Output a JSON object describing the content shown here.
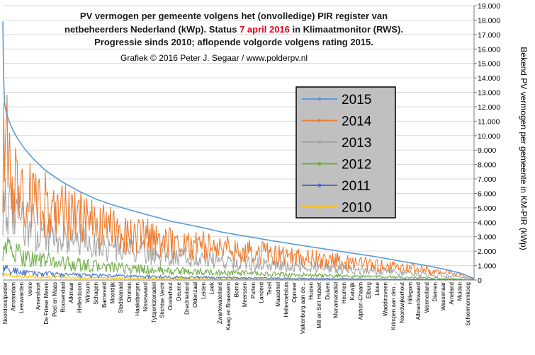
{
  "chart_data": {
    "type": "line",
    "title_lines": [
      [
        {
          "text": "PV vermogen per gemeente volgens het (onvolledige) PIR register van",
          "color": "#1a1a1a"
        }
      ],
      [
        {
          "text": "netbeheerders Nederland (kWp). Status ",
          "color": "#1a1a1a"
        },
        {
          "text": "7 april 2016",
          "color": "#e3001b"
        },
        {
          "text": " in Klimaatmonitor (RWS).",
          "color": "#1a1a1a"
        }
      ],
      [
        {
          "text": "Progressie sinds 2010; aflopende volgorde volgens rating 2015.",
          "color": "#1a1a1a"
        }
      ]
    ],
    "subtitle": "Grafiek  © 2016 Peter J. Segaar / www.polderpv.nl",
    "ylabel": "Bekend PV vermogen per gemeente in KM-PIR (kWp)",
    "ylim": [
      0,
      19000
    ],
    "y_ticks": [
      "0",
      "1.000",
      "2.000",
      "3.000",
      "4.000",
      "5.000",
      "6.000",
      "7.000",
      "8.000",
      "9.000",
      "10.000",
      "11.000",
      "12.000",
      "13.000",
      "14.000",
      "15.000",
      "16.000",
      "17.000",
      "18.000",
      "19.000"
    ],
    "grid": true,
    "legend_position": "center-right",
    "x_tick_labels": [
      "Noordoostpolder",
      "Amsterdam",
      "Leeuwarden",
      "Venlo",
      "Amersfoort",
      "De Friese Meren",
      "Peel en Maas",
      "Roosendaal",
      "Alkmaar",
      "Hellendoorn",
      "Winsum",
      "Schagen",
      "Barneveld",
      "Moerdijk",
      "Stadskanaal",
      "Ommen",
      "Haaksbergen",
      "Nissewaard",
      "Tytsjerksteradiel",
      "Stichtse Vecht",
      "Oosterhout",
      "Deurne",
      "Drechterland",
      "Oldenzaal",
      "Leiden",
      "Leek",
      "Zwartewaterland",
      "Kaag en Braassem",
      "Borne",
      "Meerssen",
      "Putten",
      "Landerd",
      "Texel",
      "Maasdriel",
      "Hellevoetsluis",
      "Opmeer",
      "Valkenburg aan de...",
      "Huizen",
      "Mill en Sint Hubert",
      "Duiven",
      "Menameradiel",
      "Heumen",
      "Katwijk",
      "Alphen-Chaam",
      "Elburg",
      "Lisse",
      "Waddinxveen",
      "Krimpen aan den...",
      "Noordwijkerhout",
      "Hillegom",
      "Albrandswaard",
      "Wormerland",
      "Diemen",
      "Wassenaar",
      "Ameland",
      "Muiden",
      "Schiermonnikoog"
    ],
    "series": [
      {
        "name": "2015",
        "color": "#5b9bd5",
        "anchors": [
          [
            0,
            17900
          ],
          [
            1,
            13800
          ],
          [
            2,
            12300
          ],
          [
            3,
            11900
          ],
          [
            5,
            11400
          ],
          [
            8,
            10900
          ],
          [
            12,
            10350
          ],
          [
            18,
            9750
          ],
          [
            25,
            9150
          ],
          [
            35,
            8450
          ],
          [
            50,
            7600
          ],
          [
            70,
            6800
          ],
          [
            90,
            6150
          ],
          [
            110,
            5600
          ],
          [
            130,
            5200
          ],
          [
            150,
            4850
          ],
          [
            175,
            4450
          ],
          [
            200,
            4050
          ],
          [
            230,
            3700
          ],
          [
            260,
            3300
          ],
          [
            290,
            3000
          ],
          [
            320,
            2700
          ],
          [
            350,
            2420
          ],
          [
            380,
            2150
          ],
          [
            410,
            1880
          ],
          [
            440,
            1620
          ],
          [
            470,
            1300
          ],
          [
            500,
            1000
          ],
          [
            520,
            760
          ],
          [
            540,
            480
          ],
          [
            556,
            100
          ]
        ]
      },
      {
        "name": "2014",
        "color": "#ed7d31",
        "anchors": [
          [
            0,
            8300
          ],
          [
            1,
            10500
          ],
          [
            3,
            7500
          ],
          [
            5,
            9000
          ],
          [
            8,
            7800
          ],
          [
            12,
            6500
          ],
          [
            18,
            6600
          ],
          [
            25,
            5800
          ],
          [
            35,
            5600
          ],
          [
            50,
            5200
          ],
          [
            70,
            4700
          ],
          [
            90,
            4300
          ],
          [
            110,
            3700
          ],
          [
            130,
            3500
          ],
          [
            150,
            3200
          ],
          [
            175,
            2900
          ],
          [
            200,
            2600
          ],
          [
            230,
            2400
          ],
          [
            260,
            2200
          ],
          [
            290,
            2000
          ],
          [
            320,
            1750
          ],
          [
            350,
            1550
          ],
          [
            380,
            1400
          ],
          [
            410,
            1200
          ],
          [
            440,
            1050
          ],
          [
            470,
            900
          ],
          [
            500,
            700
          ],
          [
            520,
            550
          ],
          [
            540,
            380
          ],
          [
            556,
            60
          ]
        ]
      },
      {
        "name": "2013",
        "color": "#a5a5a5",
        "anchors": [
          [
            0,
            5600
          ],
          [
            1,
            6400
          ],
          [
            3,
            5800
          ],
          [
            6,
            5200
          ],
          [
            10,
            4600
          ],
          [
            15,
            4300
          ],
          [
            25,
            3900
          ],
          [
            35,
            3700
          ],
          [
            50,
            3300
          ],
          [
            70,
            3000
          ],
          [
            90,
            2700
          ],
          [
            110,
            2400
          ],
          [
            130,
            2200
          ],
          [
            150,
            2050
          ],
          [
            175,
            1850
          ],
          [
            200,
            1700
          ],
          [
            230,
            1500
          ],
          [
            260,
            1350
          ],
          [
            290,
            1200
          ],
          [
            320,
            1050
          ],
          [
            350,
            900
          ],
          [
            380,
            800
          ],
          [
            410,
            700
          ],
          [
            440,
            600
          ],
          [
            470,
            500
          ],
          [
            500,
            400
          ],
          [
            520,
            300
          ],
          [
            540,
            200
          ],
          [
            556,
            30
          ]
        ]
      },
      {
        "name": "2012",
        "color": "#70ad47",
        "anchors": [
          [
            0,
            2400
          ],
          [
            1,
            3100
          ],
          [
            3,
            2300
          ],
          [
            6,
            2200
          ],
          [
            12,
            1900
          ],
          [
            20,
            1700
          ],
          [
            35,
            1500
          ],
          [
            50,
            1350
          ],
          [
            70,
            1200
          ],
          [
            90,
            1050
          ],
          [
            110,
            950
          ],
          [
            130,
            850
          ],
          [
            150,
            780
          ],
          [
            175,
            700
          ],
          [
            200,
            620
          ],
          [
            230,
            560
          ],
          [
            260,
            500
          ],
          [
            290,
            450
          ],
          [
            320,
            400
          ],
          [
            350,
            350
          ],
          [
            380,
            300
          ],
          [
            410,
            270
          ],
          [
            440,
            230
          ],
          [
            470,
            190
          ],
          [
            500,
            150
          ],
          [
            530,
            100
          ],
          [
            556,
            10
          ]
        ]
      },
      {
        "name": "2011",
        "color": "#4472c4",
        "anchors": [
          [
            0,
            600
          ],
          [
            3,
            900
          ],
          [
            8,
            500
          ],
          [
            15,
            700
          ],
          [
            25,
            500
          ],
          [
            40,
            450
          ],
          [
            60,
            400
          ],
          [
            80,
            350
          ],
          [
            100,
            320
          ],
          [
            130,
            280
          ],
          [
            160,
            250
          ],
          [
            190,
            220
          ],
          [
            220,
            190
          ],
          [
            250,
            170
          ],
          [
            280,
            150
          ],
          [
            310,
            130
          ],
          [
            340,
            115
          ],
          [
            370,
            100
          ],
          [
            400,
            85
          ],
          [
            430,
            70
          ],
          [
            460,
            60
          ],
          [
            490,
            45
          ],
          [
            520,
            30
          ],
          [
            556,
            5
          ]
        ]
      },
      {
        "name": "2010",
        "color": "#ffc000",
        "anchors": [
          [
            0,
            300
          ],
          [
            3,
            450
          ],
          [
            8,
            250
          ],
          [
            15,
            300
          ],
          [
            30,
            250
          ],
          [
            60,
            200
          ],
          [
            90,
            160
          ],
          [
            120,
            140
          ],
          [
            150,
            120
          ],
          [
            180,
            100
          ],
          [
            210,
            90
          ],
          [
            240,
            80
          ],
          [
            270,
            70
          ],
          [
            300,
            60
          ],
          [
            330,
            50
          ],
          [
            360,
            45
          ],
          [
            390,
            40
          ],
          [
            420,
            35
          ],
          [
            450,
            30
          ],
          [
            480,
            25
          ],
          [
            510,
            20
          ],
          [
            556,
            5
          ]
        ]
      }
    ]
  }
}
